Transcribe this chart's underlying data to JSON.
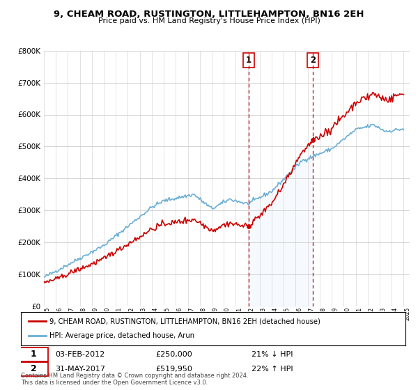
{
  "title": "9, CHEAM ROAD, RUSTINGTON, LITTLEHAMPTON, BN16 2EH",
  "subtitle": "Price paid vs. HM Land Registry's House Price Index (HPI)",
  "background_color": "#ffffff",
  "grid_color": "#cccccc",
  "ylim": [
    0,
    800000
  ],
  "yticks": [
    0,
    100000,
    200000,
    300000,
    400000,
    500000,
    600000,
    700000,
    800000
  ],
  "ytick_labels": [
    "£0",
    "£100K",
    "£200K",
    "£300K",
    "£400K",
    "£500K",
    "£600K",
    "£700K",
    "£800K"
  ],
  "sale1_date": 2012.08,
  "sale1_price": 250000,
  "sale2_date": 2017.41,
  "sale2_price": 519950,
  "hpi_color": "#6baed6",
  "hpi_fill_color": "#ddeeff",
  "house_color": "#cc0000",
  "box_color": "#cc0000",
  "legend_house_label": "9, CHEAM ROAD, RUSTINGTON, LITTLEHAMPTON, BN16 2EH (detached house)",
  "legend_hpi_label": "HPI: Average price, detached house, Arun",
  "ann1_date": "03-FEB-2012",
  "ann1_price": "£250,000",
  "ann1_hpi": "21% ↓ HPI",
  "ann2_date": "31-MAY-2017",
  "ann2_price": "£519,950",
  "ann2_hpi": "22% ↑ HPI",
  "footer": "Contains HM Land Registry data © Crown copyright and database right 2024.\nThis data is licensed under the Open Government Licence v3.0."
}
